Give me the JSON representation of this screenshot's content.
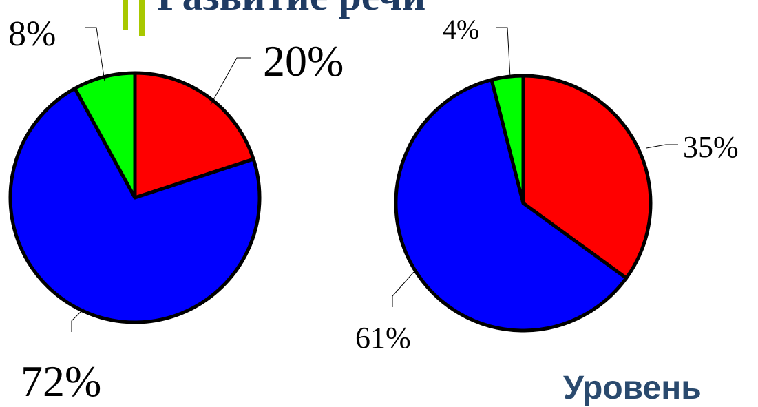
{
  "title": "Развитие речи",
  "footer": "Уровень",
  "colors": {
    "red": "#ff0000",
    "blue": "#0000ff",
    "green": "#00ff00",
    "accent": "#a8c800",
    "title": "#1f3b63"
  },
  "chart_data": [
    {
      "type": "pie",
      "slices": [
        {
          "label": "20%",
          "value": 20,
          "color": "#ff0000"
        },
        {
          "label": "72%",
          "value": 72,
          "color": "#0000ff"
        },
        {
          "label": "8%",
          "value": 8,
          "color": "#00ff00"
        }
      ]
    },
    {
      "type": "pie",
      "slices": [
        {
          "label": "35%",
          "value": 35,
          "color": "#ff0000"
        },
        {
          "label": "61%",
          "value": 61,
          "color": "#0000ff"
        },
        {
          "label": "4%",
          "value": 4,
          "color": "#00ff00"
        }
      ]
    }
  ]
}
